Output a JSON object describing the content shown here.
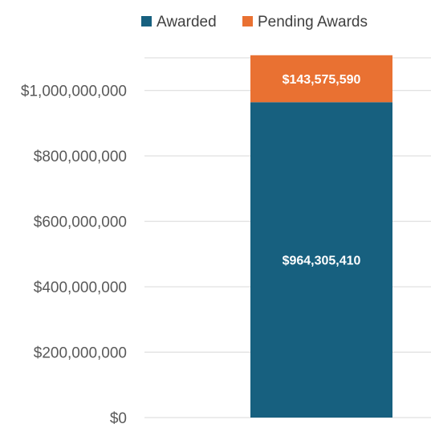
{
  "chart_data": {
    "type": "bar",
    "stacked": true,
    "categories": [
      ""
    ],
    "series": [
      {
        "name": "Awarded",
        "values": [
          964305410
        ],
        "label": "$964,305,410",
        "color": "#17607F"
      },
      {
        "name": "Pending Awards",
        "values": [
          143575590
        ],
        "label": "$143,575,590",
        "color": "#E97132"
      }
    ],
    "ylim": [
      0,
      1100000000
    ],
    "yticks": [
      0,
      200000000,
      400000000,
      600000000,
      800000000,
      1000000000
    ],
    "ytick_labels": [
      "$0",
      "$200,000,000",
      "$400,000,000",
      "$600,000,000",
      "$800,000,000",
      "$1,000,000,000"
    ],
    "grid": true,
    "legend": "top",
    "title": "",
    "xlabel": "",
    "ylabel": ""
  },
  "colors": {
    "grid": "#D9D9D9",
    "tick_text": "#595959"
  }
}
